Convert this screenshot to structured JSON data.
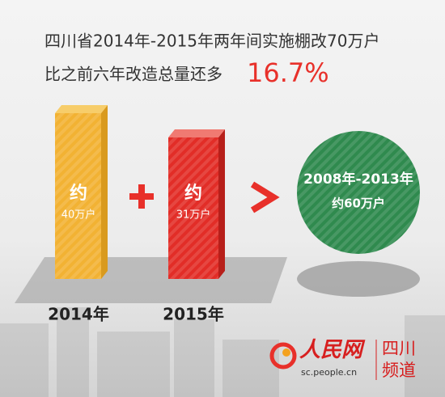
{
  "headline": {
    "line1": "四川省2014年-2015年两年间实施棚改70万户",
    "line2": "比之前六年改造总量还多",
    "highlight": "16.7%"
  },
  "bars": [
    {
      "prefix": "约",
      "amount": "40万户",
      "label": "2014年"
    },
    {
      "prefix": "约",
      "amount": "31万户",
      "label": "2015年"
    }
  ],
  "circle": {
    "period": "2008年-2013年",
    "amount": "约60万户"
  },
  "logo": {
    "brand": "人民网",
    "url": "sc.people.cn",
    "channel_lines": [
      "四川",
      "频道"
    ]
  }
}
